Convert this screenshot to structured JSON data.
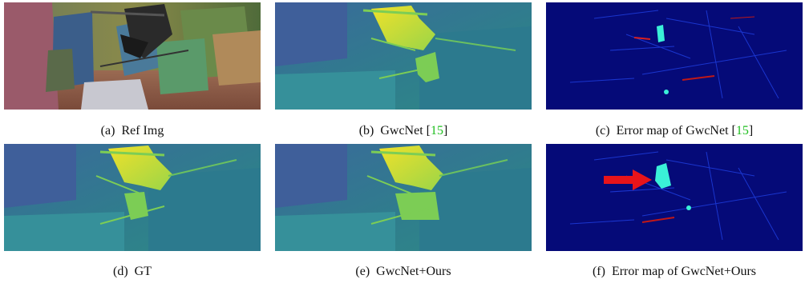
{
  "figure": {
    "panels": [
      {
        "id": "a",
        "kind": "rgb-image",
        "caption": {
          "label": "(a)",
          "text": "Ref Img",
          "cite": ""
        }
      },
      {
        "id": "b",
        "kind": "disparity",
        "caption": {
          "label": "(b)",
          "text": "GwcNet [",
          "cite": "15",
          "close": "]"
        }
      },
      {
        "id": "c",
        "kind": "error-map",
        "caption": {
          "label": "(c)",
          "text": "Error map of GwcNet [",
          "cite": "15",
          "close": "]"
        }
      },
      {
        "id": "d",
        "kind": "disparity",
        "caption": {
          "label": "(d)",
          "text": "GT",
          "cite": ""
        }
      },
      {
        "id": "e",
        "kind": "disparity",
        "caption": {
          "label": "(e)",
          "text": "GwcNet+Ours",
          "cite": ""
        }
      },
      {
        "id": "f",
        "kind": "error-map",
        "caption": {
          "label": "(f)",
          "text": "Error map of GwcNet+Ours",
          "cite": ""
        }
      }
    ],
    "colors": {
      "cite": "#1fbf1f",
      "error_bg": "#050a78",
      "arrow": "#e8141a",
      "disparity_low": "#2f7e8c",
      "disparity_high": "#f0e12a"
    }
  }
}
